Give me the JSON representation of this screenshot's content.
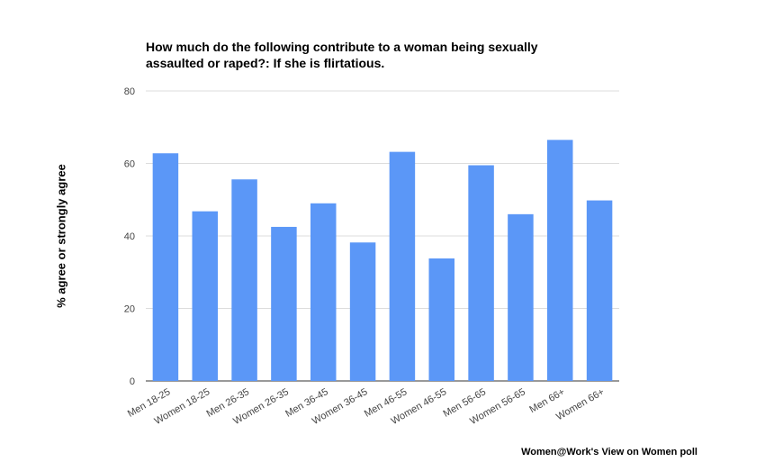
{
  "chart_data": {
    "type": "bar",
    "title": "How much do the following contribute to a woman being sexually assaulted or raped?: If she is flirtatious.",
    "title_lines": [
      "How much do the following contribute to a woman being sexually",
      "assaulted or raped?: If she is flirtatious."
    ],
    "xlabel": "",
    "ylabel": "% agree or strongly agree",
    "ylim": [
      0,
      80
    ],
    "yticks": [
      0,
      20,
      40,
      60,
      80
    ],
    "grid": true,
    "legend": "none",
    "categories": [
      "Men 18-25",
      "Women 18-25",
      "Men 26-35",
      "Women 26-35",
      "Men 36-45",
      "Women 36-45",
      "Men 46-55",
      "Women 46-55",
      "Men 56-65",
      "Women 56-65",
      "Men 66+",
      "Women 66+"
    ],
    "values": [
      62.8,
      46.8,
      55.6,
      42.5,
      49.0,
      38.2,
      63.2,
      33.8,
      59.5,
      46.0,
      66.5,
      49.8
    ],
    "bar_color": "#5b97f7"
  },
  "source": "Women@Work's View on Women poll"
}
